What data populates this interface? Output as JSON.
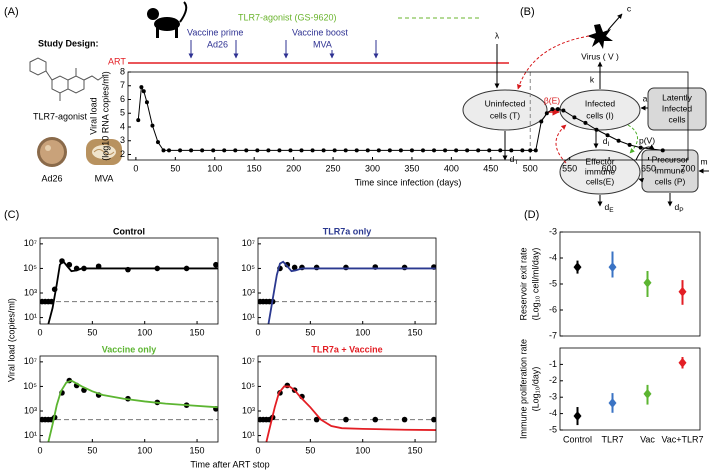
{
  "panel_labels": [
    "(A)",
    "(B)",
    "(C)",
    "(D)"
  ],
  "study_design": {
    "title": "Study Design:",
    "drug": "TLR7-agonist",
    "vectors": [
      "Ad26",
      "MVA"
    ]
  },
  "timeline": {
    "tlr7": "TLR7-agonist (GS-9620)",
    "prime": [
      "Vaccine prime",
      "Ad26"
    ],
    "boost": [
      "Vaccine boost",
      "MVA"
    ],
    "art": "ART"
  },
  "diagram": {
    "nodes": [
      {
        "lines": [
          "Uninfected",
          "cells (T)"
        ]
      },
      {
        "lines": [
          "Infected",
          "cells (I)"
        ]
      },
      {
        "lines": [
          "Latently",
          "Infected",
          "cells"
        ]
      },
      {
        "lines": [
          "Effector",
          "immune",
          "cells(E)"
        ]
      },
      {
        "lines": [
          "Precursor",
          "immune",
          "cells (P)"
        ]
      },
      {
        "lines": [
          "Virus ( V )"
        ]
      }
    ],
    "rates": {
      "lambda": "λ",
      "c": "c",
      "k": "k",
      "beta": "β(E)",
      "a": "a",
      "p": "p(V)",
      "m": "m",
      "dT": [
        "d",
        "T"
      ],
      "dI": [
        "d",
        "I"
      ],
      "dE": [
        "d",
        "E"
      ],
      "dP": [
        "d",
        "P"
      ]
    }
  },
  "panel_c": {
    "y_label": "Viral load (copies/ml)",
    "x_label": "Time after ART stop"
  },
  "chart_data": [
    {
      "type": "line",
      "x_label": "Time since infection (days)",
      "y_label": [
        "Viral load",
        "(log10 RNA copies/ml)"
      ],
      "xlim": [
        -10,
        700
      ],
      "xticks": [
        0,
        50,
        100,
        150,
        200,
        250,
        300,
        350,
        400,
        450,
        500,
        550,
        600,
        650,
        700
      ],
      "ylim": [
        1.6,
        8
      ],
      "yticks": [
        2,
        3,
        4,
        5,
        6,
        7,
        8
      ],
      "vline": 500,
      "series": [
        {
          "style": "line+points",
          "color": "#000000",
          "x": [
            3,
            7,
            10,
            14,
            21,
            28,
            35,
            42,
            56,
            70,
            84,
            98,
            112,
            126,
            140,
            154,
            168,
            182,
            196,
            210,
            224,
            238,
            252,
            266,
            280,
            294,
            308,
            322,
            336,
            350,
            364,
            378,
            392,
            406,
            420,
            434,
            448,
            462,
            476,
            490,
            500,
            507,
            514,
            521,
            528,
            535,
            542,
            556,
            570,
            584,
            598,
            612,
            626,
            640,
            668
          ],
          "values": [
            4.5,
            6.9,
            6.6,
            5.8,
            4.1,
            2.9,
            2.3,
            2.3,
            2.3,
            2.3,
            2.3,
            2.3,
            2.3,
            2.3,
            2.3,
            2.3,
            2.3,
            2.3,
            2.3,
            2.3,
            2.3,
            2.3,
            2.3,
            2.3,
            2.3,
            2.3,
            2.3,
            2.3,
            2.3,
            2.3,
            2.3,
            2.3,
            2.3,
            2.3,
            2.3,
            2.3,
            2.3,
            2.3,
            2.3,
            2.3,
            2.3,
            2.3,
            4.4,
            5.0,
            5.3,
            5.3,
            5.2,
            4.7,
            4.3,
            3.8,
            3.4,
            3.0,
            2.7,
            2.5,
            2.3
          ]
        }
      ]
    },
    {
      "type": "line",
      "title": "Control",
      "title_color": "#000000",
      "log_y": true,
      "threshold": 200,
      "xlim": [
        0,
        170
      ],
      "xticks": [
        0,
        50,
        100,
        150
      ],
      "ylim": [
        3,
        30000000
      ],
      "yticks": [
        {
          "value": 10,
          "label": "10¹"
        },
        {
          "value": 1000,
          "label": "10³"
        },
        {
          "value": 100000,
          "label": "10⁵"
        },
        {
          "value": 10000000,
          "label": "10⁷"
        }
      ],
      "series": [
        {
          "style": "points",
          "color": "#000000",
          "x": [
            2,
            5,
            8,
            11,
            14,
            21,
            28,
            35,
            42,
            56,
            84,
            112,
            140,
            168
          ],
          "values": [
            200,
            200,
            200,
            200,
            2000,
            400000,
            200000,
            100000,
            100000,
            150000,
            80000,
            100000,
            100000,
            200000
          ]
        },
        {
          "style": "line",
          "color": "#000000",
          "x": [
            8,
            12,
            16,
            19,
            22,
            26,
            30,
            35,
            40,
            50,
            60,
            170
          ],
          "values": [
            3,
            60,
            5000,
            200000,
            400000,
            150000,
            60000,
            70000,
            100000,
            100000,
            100000,
            100000
          ]
        }
      ]
    },
    {
      "type": "line",
      "title": "TLR7a only",
      "title_color": "#2b3990",
      "log_y": true,
      "threshold": 200,
      "xlim": [
        0,
        170
      ],
      "xticks": [
        0,
        50,
        100,
        150
      ],
      "ylim": [
        3,
        30000000
      ],
      "yticks": [
        {
          "value": 10,
          "label": "10¹"
        },
        {
          "value": 1000,
          "label": "10³"
        },
        {
          "value": 100000,
          "label": "10⁵"
        },
        {
          "value": 10000000,
          "label": "10⁷"
        }
      ],
      "series": [
        {
          "style": "points",
          "color": "#000000",
          "x": [
            2,
            5,
            8,
            11,
            14,
            21,
            28,
            35,
            42,
            56,
            84,
            112,
            140,
            168
          ],
          "values": [
            200,
            200,
            200,
            200,
            200,
            100000,
            200000,
            120000,
            120000,
            120000,
            120000,
            130000,
            120000,
            130000
          ]
        },
        {
          "style": "line",
          "color": "#2b3990",
          "x": [
            10,
            14,
            18,
            21,
            24,
            28,
            32,
            36,
            42,
            50,
            60,
            170
          ],
          "values": [
            3,
            300,
            30000,
            250000,
            350000,
            150000,
            60000,
            70000,
            100000,
            100000,
            100000,
            100000
          ]
        }
      ]
    },
    {
      "type": "line",
      "title": "Vaccine only",
      "title_color": "#5cb531",
      "log_y": true,
      "threshold": 200,
      "xlim": [
        0,
        170
      ],
      "xticks": [
        0,
        50,
        100,
        150
      ],
      "ylim": [
        3,
        30000000
      ],
      "yticks": [
        {
          "value": 10,
          "label": "10¹"
        },
        {
          "value": 1000,
          "label": "10³"
        },
        {
          "value": 100000,
          "label": "10⁵"
        },
        {
          "value": 10000000,
          "label": "10⁷"
        }
      ],
      "series": [
        {
          "style": "points",
          "color": "#000000",
          "x": [
            2,
            5,
            8,
            11,
            14,
            21,
            28,
            35,
            42,
            56,
            84,
            112,
            140,
            168
          ],
          "values": [
            200,
            200,
            200,
            200,
            300,
            30000,
            300000,
            120000,
            50000,
            20000,
            10000,
            5000,
            3000,
            1500
          ]
        },
        {
          "style": "line",
          "color": "#5cb531",
          "x": [
            8,
            12,
            16,
            20,
            25,
            30,
            40,
            50,
            60,
            80,
            100,
            120,
            140,
            170
          ],
          "values": [
            3,
            80,
            3000,
            40000,
            200000,
            300000,
            100000,
            40000,
            20000,
            10000,
            6000,
            4000,
            3000,
            2000
          ]
        }
      ]
    },
    {
      "type": "line",
      "title": "TLR7a + Vaccine",
      "title_color": "#e31e24",
      "log_y": true,
      "threshold": 200,
      "xlim": [
        0,
        170
      ],
      "xticks": [
        0,
        50,
        100,
        150
      ],
      "ylim": [
        3,
        30000000
      ],
      "yticks": [
        {
          "value": 10,
          "label": "10¹"
        },
        {
          "value": 1000,
          "label": "10³"
        },
        {
          "value": 100000,
          "label": "10⁵"
        },
        {
          "value": 10000000,
          "label": "10⁷"
        }
      ],
      "series": [
        {
          "style": "points",
          "color": "#000000",
          "x": [
            2,
            5,
            8,
            11,
            14,
            21,
            28,
            35,
            42,
            56,
            84,
            112,
            140,
            168
          ],
          "values": [
            200,
            200,
            200,
            200,
            300,
            30000,
            120000,
            50000,
            15000,
            200,
            200,
            200,
            200,
            200
          ]
        },
        {
          "style": "line",
          "color": "#e31e24",
          "x": [
            8,
            12,
            16,
            20,
            25,
            30,
            35,
            40,
            50,
            60,
            70,
            80,
            100,
            140,
            170
          ],
          "values": [
            3,
            80,
            2000,
            30000,
            100000,
            100000,
            50000,
            15000,
            2000,
            200,
            60,
            40,
            35,
            30,
            28
          ]
        }
      ]
    },
    {
      "type": "errorbar",
      "y_label": [
        "Reservoir exit rate",
        "(Log₁₀ cell/ml/day)"
      ],
      "values": [
        -4.35,
        -4.35,
        -4.95,
        -5.3
      ],
      "error_low": [
        0.25,
        0.4,
        0.55,
        0.5
      ],
      "error_high": [
        0.25,
        0.6,
        0.45,
        0.45
      ],
      "colors": [
        "#000000",
        "#3a73c4",
        "#5cb531",
        "#e31e24"
      ],
      "ylim": [
        -7,
        -3
      ],
      "yticks": [
        -3,
        -4,
        -5,
        -6,
        -7
      ]
    },
    {
      "type": "errorbar",
      "y_label": [
        "Immune proliferation rate",
        "(Log₁₀/day)"
      ],
      "categories": [
        "Control",
        "TLR7",
        "Vac",
        "Vac+TLR7"
      ],
      "values": [
        -4.15,
        -3.35,
        -2.8,
        -0.9
      ],
      "error_low": [
        0.55,
        0.6,
        0.65,
        0.35
      ],
      "error_high": [
        0.55,
        0.6,
        0.55,
        0.35
      ],
      "colors": [
        "#000000",
        "#3a73c4",
        "#5cb531",
        "#e31e24"
      ],
      "ylim": [
        -5,
        0
      ],
      "yticks": [
        -1,
        -2,
        -3,
        -4,
        -5
      ]
    }
  ]
}
